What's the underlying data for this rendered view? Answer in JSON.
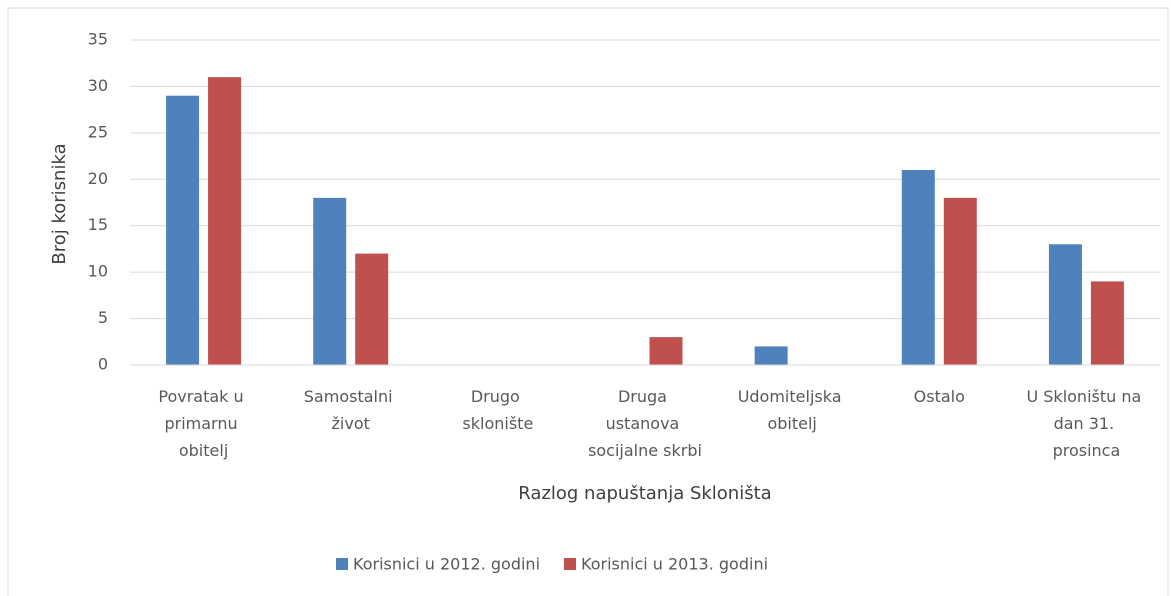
{
  "chart_data": {
    "type": "bar",
    "x_label": "Razlog napuštanja Skloništa",
    "y_label": "Broj korisnika",
    "categories": [
      "Povratak u primarnu obitelj",
      "Samostalni život",
      "Drugo sklonište",
      "Druga ustanova socijalne skrbi",
      "Udomiteljska obitelj",
      "Ostalo",
      "U Skloništu na dan 31. prosinca"
    ],
    "series": [
      {
        "name": "Korisnici u 2012. godini",
        "color": "#4f81bd",
        "values": [
          29,
          18,
          0,
          0,
          2,
          21,
          13
        ]
      },
      {
        "name": "Korisnici u 2013. godini",
        "color": "#c0504d",
        "values": [
          31,
          12,
          0,
          3,
          0,
          18,
          9
        ]
      }
    ],
    "ylim": [
      0,
      35
    ],
    "yticks": [
      0,
      5,
      10,
      15,
      20,
      25,
      30,
      35
    ],
    "grid": true,
    "legend": "bottom"
  }
}
